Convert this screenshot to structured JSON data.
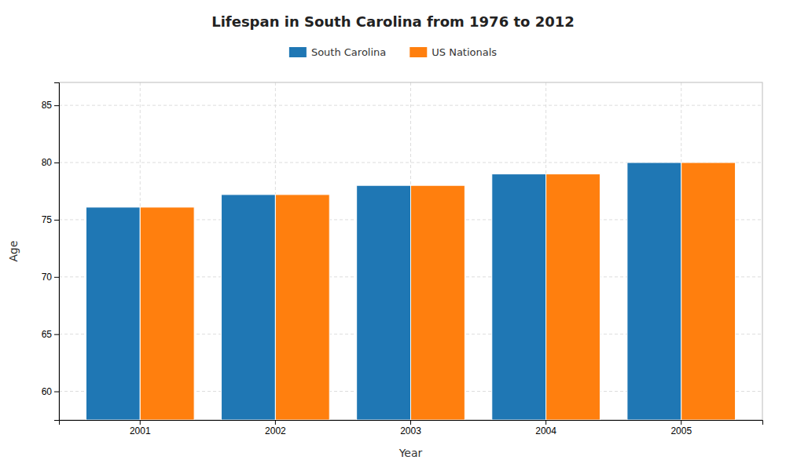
{
  "chart_data": {
    "type": "bar",
    "title": "Lifespan in South Carolina from 1976 to 2012",
    "xlabel": "Year",
    "ylabel": "Age",
    "categories": [
      "2001",
      "2002",
      "2003",
      "2004",
      "2005"
    ],
    "series": [
      {
        "name": "South Carolina",
        "values": [
          76.1,
          77.2,
          78.0,
          79.0,
          80.0
        ]
      },
      {
        "name": "US Nationals",
        "values": [
          76.1,
          77.2,
          78.0,
          79.0,
          80.0
        ]
      }
    ],
    "ylim": [
      57.5,
      87
    ],
    "yticks": [
      60,
      65,
      70,
      75,
      80,
      85
    ],
    "grid": true,
    "legend": "top"
  }
}
